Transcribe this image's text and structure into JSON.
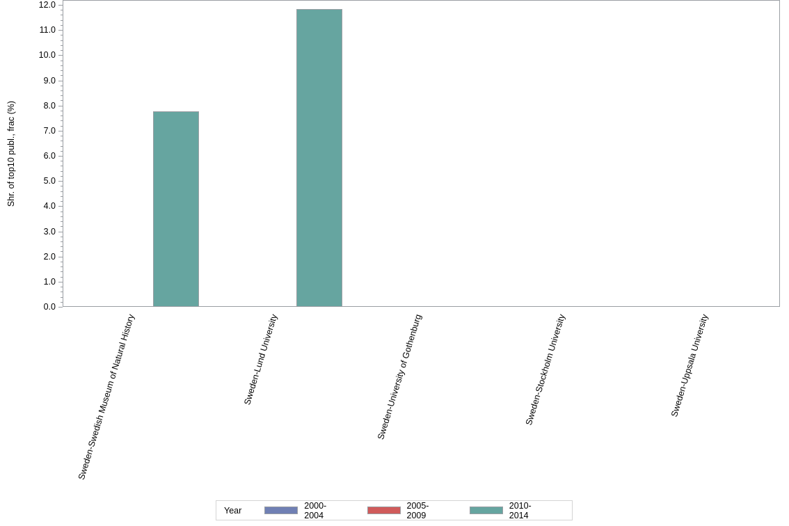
{
  "chart_data": {
    "type": "bar",
    "title": "",
    "xlabel": "",
    "ylabel": "Shr. of top10 publ., frac (%)",
    "ylim": [
      0,
      12
    ],
    "yticks": [
      "0.0",
      "1.0",
      "2.0",
      "3.0",
      "4.0",
      "5.0",
      "6.0",
      "7.0",
      "8.0",
      "9.0",
      "10.0",
      "11.0",
      "12.0"
    ],
    "categories": [
      "Sweden-Swedish Museum of Natural History",
      "Sweden-Lund University",
      "Sweden-University of Gothenburg",
      "Sweden-Stockholm University",
      "Sweden-Uppsala University"
    ],
    "series": [
      {
        "name": "2000-2004",
        "color": "#7080b4",
        "values": [
          null,
          null,
          null,
          null,
          null
        ]
      },
      {
        "name": "2005-2009",
        "color": "#d05b5b",
        "values": [
          null,
          null,
          null,
          null,
          null
        ]
      },
      {
        "name": "2010-2014",
        "color": "#66a5a0",
        "values": [
          7.78,
          11.83,
          null,
          null,
          null
        ]
      }
    ],
    "legend": {
      "title": "Year",
      "position": "bottom"
    },
    "grid": false
  },
  "axis": {
    "y_title": "Shr. of top10 publ., frac (%)"
  },
  "legend": {
    "title": "Year",
    "items": [
      {
        "label": "2000-2004",
        "color": "#7080b4"
      },
      {
        "label": "2005-2009",
        "color": "#d05b5b"
      },
      {
        "label": "2010-2014",
        "color": "#66a5a0"
      }
    ]
  }
}
